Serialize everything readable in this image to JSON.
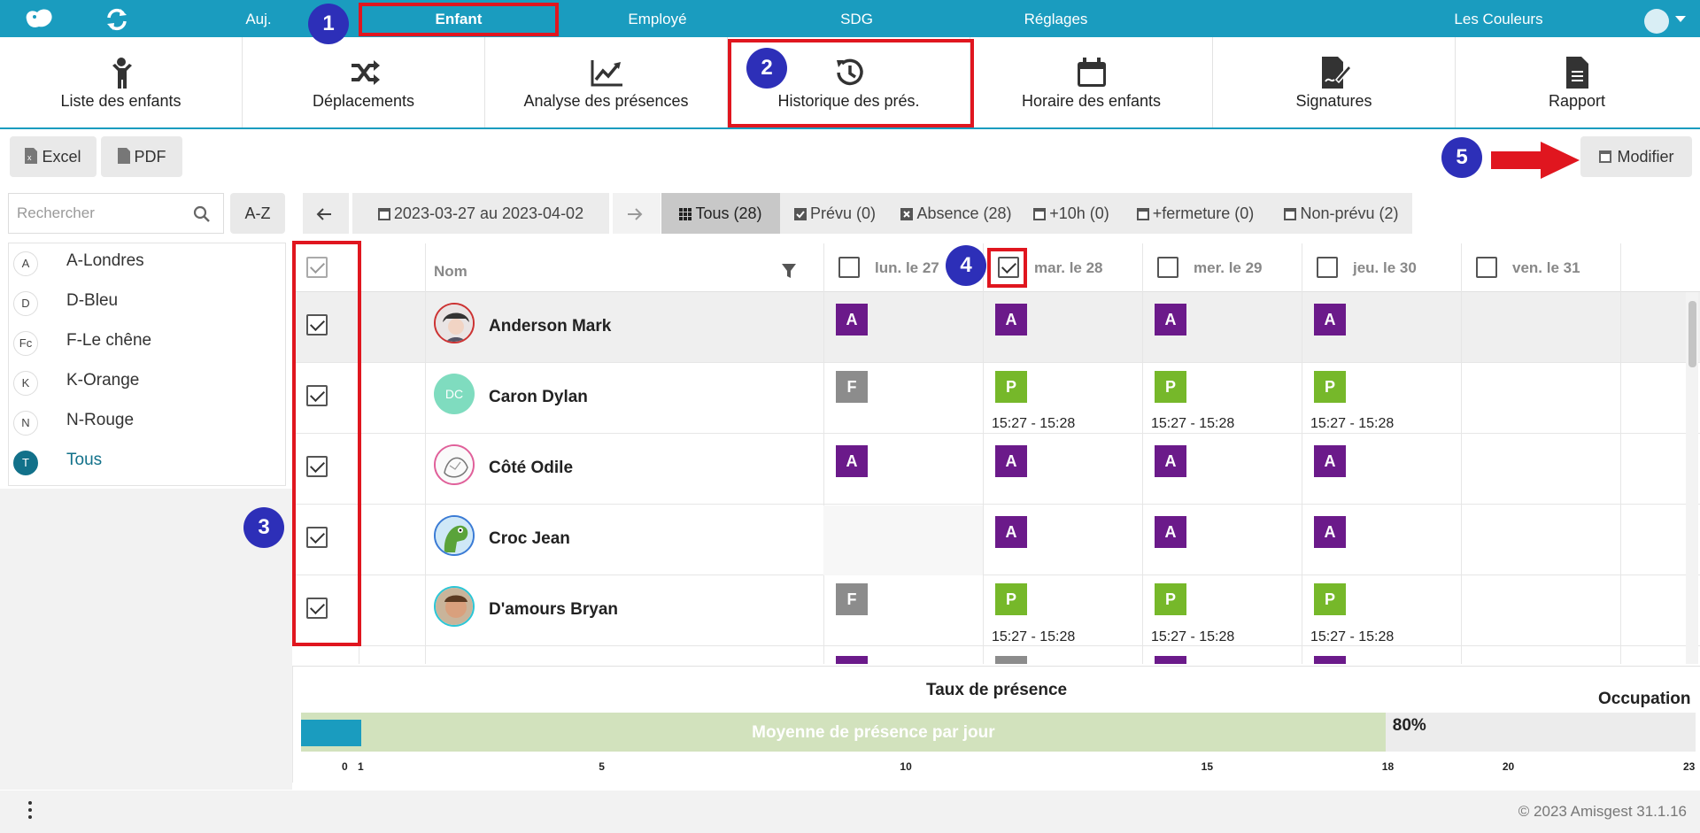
{
  "topnav": {
    "items": [
      "Auj.",
      "Enfant",
      "Employé",
      "SDG",
      "Réglages"
    ],
    "org": "Les Couleurs",
    "active": "Enfant"
  },
  "toolbar": [
    {
      "label": "Liste des enfants",
      "icon": "child-icon"
    },
    {
      "label": "Déplacements",
      "icon": "shuffle-icon"
    },
    {
      "label": "Analyse des présences",
      "icon": "trend-chart-icon"
    },
    {
      "label": "Historique des prés.",
      "icon": "history-icon"
    },
    {
      "label": "Horaire des enfants",
      "icon": "calendar-icon"
    },
    {
      "label": "Signatures",
      "icon": "signature-icon"
    },
    {
      "label": "Rapport",
      "icon": "report-icon"
    }
  ],
  "actions": {
    "excel": "Excel",
    "pdf": "PDF",
    "modify": "Modifier"
  },
  "search": {
    "placeholder": "Rechercher",
    "sort": "A-Z"
  },
  "groups": [
    {
      "badge": "A",
      "label": "A-Londres"
    },
    {
      "badge": "D",
      "label": "D-Bleu"
    },
    {
      "badge": "Fc",
      "label": "F-Le chêne"
    },
    {
      "badge": "K",
      "label": "K-Orange"
    },
    {
      "badge": "N",
      "label": "N-Rouge"
    },
    {
      "badge": "T",
      "label": "Tous",
      "active": true
    }
  ],
  "filters": {
    "date_range": "2023-03-27 au 2023-04-02",
    "tabs": [
      "Tous (28)",
      "Prévu (0)",
      "Absence (28)",
      "+10h (0)",
      "+fermeture (0)",
      "Non-prévu (2)"
    ],
    "active_tab": "Tous (28)"
  },
  "grid": {
    "name_header": "Nom",
    "days": [
      "lun. le 27",
      "mar. le 28",
      "mer. le 29",
      "jeu. le 30",
      "ven. le 31"
    ],
    "days_checked": [
      false,
      true,
      false,
      false,
      false
    ],
    "rows": [
      {
        "name": "Anderson Mark",
        "avatar": "photo",
        "days": [
          {
            "code": "A"
          },
          {
            "code": "A"
          },
          {
            "code": "A"
          },
          {
            "code": "A"
          },
          null
        ]
      },
      {
        "name": "Caron Dylan",
        "avatar": "DC",
        "days": [
          {
            "code": "F"
          },
          {
            "code": "P",
            "time": "15:27 - 15:28"
          },
          {
            "code": "P",
            "time": "15:27 - 15:28"
          },
          {
            "code": "P",
            "time": "15:27 - 15:28"
          },
          null
        ]
      },
      {
        "name": "Côté Odile",
        "avatar": "drawing",
        "days": [
          {
            "code": "A"
          },
          {
            "code": "A"
          },
          {
            "code": "A"
          },
          {
            "code": "A"
          },
          null
        ]
      },
      {
        "name": "Croc Jean",
        "avatar": "croc",
        "days": [
          null,
          {
            "code": "A"
          },
          {
            "code": "A"
          },
          {
            "code": "A"
          },
          null
        ]
      },
      {
        "name": "D'amours Bryan",
        "avatar": "photo",
        "days": [
          {
            "code": "F"
          },
          {
            "code": "P",
            "time": "15:27 - 15:28"
          },
          {
            "code": "P",
            "time": "15:27 - 15:28"
          },
          {
            "code": "P",
            "time": "15:27 - 15:28"
          },
          null
        ]
      }
    ]
  },
  "chart": {
    "title": "Taux de présence",
    "occupation_label": "Occupation",
    "bar_label": "Moyenne de présence par jour",
    "percent": "80%",
    "scale_max": 23,
    "average": 1,
    "capacity_80": 18,
    "ticks": [
      "0",
      "1",
      "5",
      "10",
      "15",
      "18",
      "20",
      "23"
    ]
  },
  "annotations": [
    "1",
    "2",
    "3",
    "4",
    "5"
  ],
  "footer": {
    "copyright": "© 2023 Amisgest 31.1.16"
  },
  "colors": {
    "primary": "#1a9cbf",
    "absence": "#6b1a8a",
    "present": "#76b82a",
    "closed": "#8c8c8c",
    "annotation": "#2d2fb8",
    "highlight": "#e0161f"
  }
}
